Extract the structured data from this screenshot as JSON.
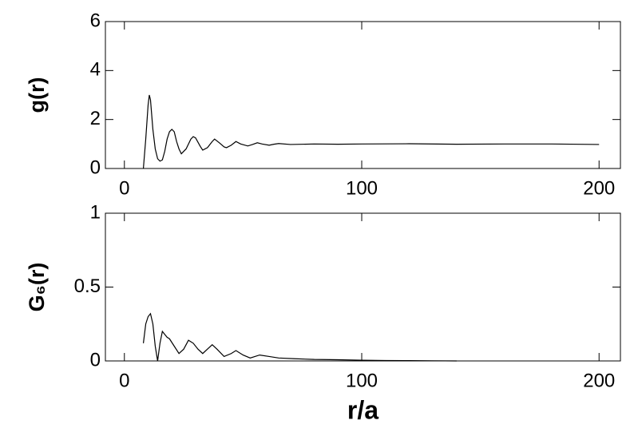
{
  "chart_data": [
    {
      "type": "line",
      "ylabel": "g(r)",
      "color": "#000000",
      "x": [
        8,
        9,
        10,
        10.5,
        11,
        12,
        13,
        14,
        15,
        16,
        17,
        18,
        19,
        20,
        21,
        22,
        23,
        24,
        26,
        28,
        29,
        30,
        32,
        33,
        35,
        37,
        38,
        40,
        42,
        43,
        45,
        47,
        49,
        52,
        54,
        56,
        58,
        61,
        63,
        65,
        70,
        80,
        90,
        100,
        120,
        140,
        160,
        180,
        200
      ],
      "values": [
        0,
        1.2,
        2.6,
        3.0,
        2.8,
        1.6,
        0.8,
        0.4,
        0.3,
        0.35,
        0.7,
        1.2,
        1.5,
        1.6,
        1.5,
        1.1,
        0.8,
        0.6,
        0.8,
        1.2,
        1.3,
        1.25,
        0.9,
        0.75,
        0.85,
        1.1,
        1.2,
        1.05,
        0.88,
        0.85,
        0.95,
        1.1,
        1.0,
        0.92,
        0.98,
        1.05,
        1.0,
        0.95,
        0.99,
        1.02,
        0.98,
        1.0,
        0.99,
        1.0,
        1.01,
        0.99,
        1.0,
        1.0,
        0.98
      ],
      "xlim": [
        -8,
        209
      ],
      "xticks": [
        0,
        100,
        200
      ],
      "ylim": [
        0,
        6
      ],
      "yticks": [
        0,
        2,
        4,
        6
      ]
    },
    {
      "type": "line",
      "ylabel": "G₆(r)",
      "xlabel": "r/a",
      "color": "#000000",
      "x": [
        8,
        9,
        10,
        11,
        12,
        13,
        14,
        15,
        16,
        17,
        18,
        19,
        21,
        23,
        25,
        27,
        29,
        31,
        33,
        35,
        37,
        39,
        42,
        45,
        47,
        50,
        53,
        57,
        61,
        65,
        72,
        80,
        90,
        100,
        110,
        120,
        130,
        140
      ],
      "values": [
        0.12,
        0.25,
        0.3,
        0.32,
        0.25,
        0.1,
        0.0,
        0.12,
        0.2,
        0.18,
        0.16,
        0.15,
        0.1,
        0.05,
        0.08,
        0.14,
        0.12,
        0.08,
        0.05,
        0.08,
        0.11,
        0.08,
        0.03,
        0.05,
        0.07,
        0.04,
        0.02,
        0.04,
        0.03,
        0.02,
        0.015,
        0.01,
        0.008,
        0.005,
        0.003,
        0.002,
        0.001,
        0
      ],
      "xlim": [
        -8,
        209
      ],
      "xticks": [
        0,
        100,
        200
      ],
      "ylim": [
        0,
        1
      ],
      "yticks": [
        0,
        0.5,
        1
      ]
    }
  ]
}
